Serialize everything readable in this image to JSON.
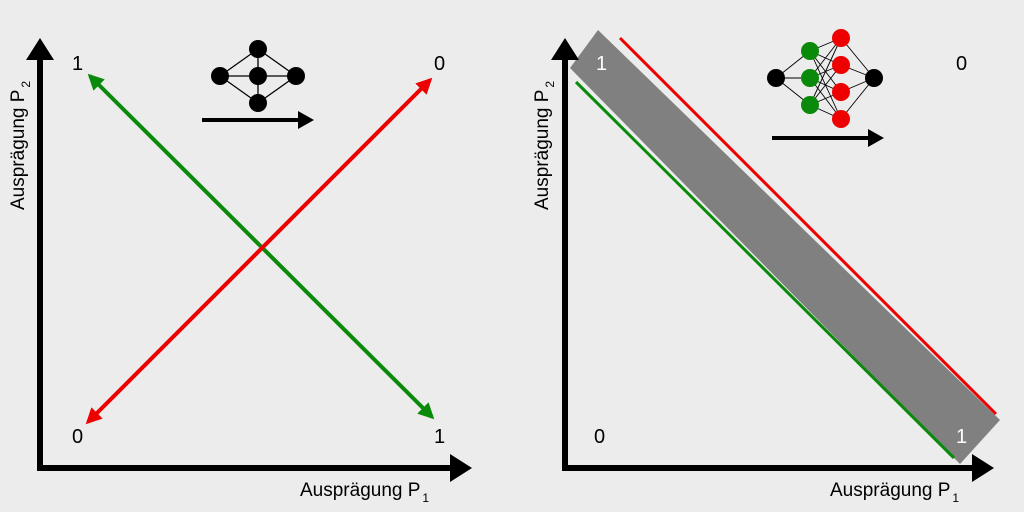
{
  "colors": {
    "background": "#ececec",
    "axis": "#000000",
    "green": "#0a8a0a",
    "red": "#ee0000",
    "band": "#808080",
    "node_black": "#000000",
    "label_on_band": "#ffffff"
  },
  "left_panel": {
    "y_axis_label": "Ausprägung P",
    "y_axis_subscript": "2",
    "x_axis_label": "Ausprägung P",
    "x_axis_subscript": "1",
    "corner_top_left": "1",
    "corner_top_right": "0",
    "corner_bottom_left": "0",
    "corner_bottom_right": "1",
    "network_icon": "small-neural-network-icon",
    "arrow_icon": "right-arrow-icon"
  },
  "right_panel": {
    "y_axis_label": "Ausprägung P",
    "y_axis_subscript": "2",
    "x_axis_label": "Ausprägung P",
    "x_axis_subscript": "1",
    "corner_top_left": "1",
    "corner_top_right": "0",
    "corner_bottom_left": "0",
    "corner_bottom_right": "1",
    "network_icon": "deep-neural-network-icon",
    "arrow_icon": "right-arrow-icon"
  }
}
